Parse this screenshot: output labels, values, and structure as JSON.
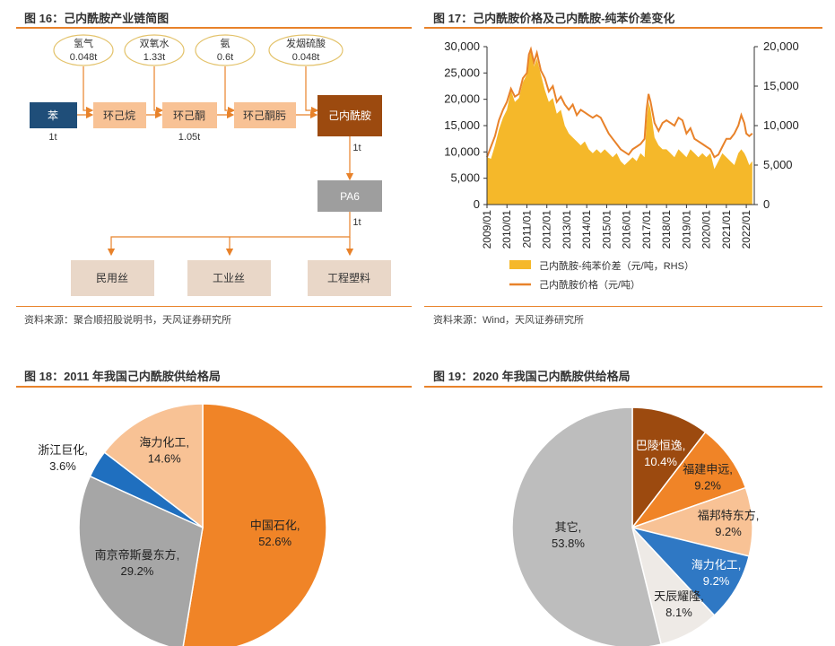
{
  "fig16": {
    "title": "图 16：己内酰胺产业链简图",
    "source": "资料来源：聚合顺招股说明书，天风证券研究所",
    "inputs": [
      {
        "name": "氢气",
        "amount": "0.048t"
      },
      {
        "name": "双氧水",
        "amount": "1.33t"
      },
      {
        "name": "氨",
        "amount": "0.6t"
      },
      {
        "name": "发烟硫酸",
        "amount": "0.048t"
      }
    ],
    "chain": [
      "苯",
      "环己烷",
      "环己酮",
      "环己酮肟",
      "己内酰胺"
    ],
    "benzene_qty": "1t",
    "cyclohexanone_qty": "1.05t",
    "caprolactam_qty": "1t",
    "pa6": "PA6",
    "pa6_qty": "1t",
    "outputs": [
      "民用丝",
      "工业丝",
      "工程塑料"
    ]
  },
  "fig17": {
    "title": "图 17：己内酰胺价格及己内酰胺-纯苯价差变化",
    "source": "资料来源：Wind，天风证券研究所",
    "legend_area": "己内酰胺-纯苯价差（元/吨，RHS）",
    "legend_line": "己内酰胺价格（元/吨）",
    "colors": {
      "area": "#f5b82a",
      "line": "#e8822a"
    },
    "chart_data": {
      "type": "line",
      "x_ticks": [
        "2009/01",
        "2010/01",
        "2011/01",
        "2012/01",
        "2013/01",
        "2014/01",
        "2015/01",
        "2016/01",
        "2017/01",
        "2018/01",
        "2019/01",
        "2020/01",
        "2021/01",
        "2022/01"
      ],
      "left_axis": {
        "min": 0,
        "max": 30000,
        "ticks": [
          "0",
          "5,000",
          "10,000",
          "15,000",
          "20,000",
          "25,000",
          "30,000"
        ]
      },
      "right_axis": {
        "min": 0,
        "max": 20000,
        "ticks": [
          "0",
          "5,000",
          "10,000",
          "15,000",
          "20,000"
        ]
      },
      "series": [
        {
          "name": "己内酰胺价格（元/吨）",
          "axis": "left",
          "points": [
            [
              2009.0,
              9000
            ],
            [
              2009.2,
              11000
            ],
            [
              2009.4,
              13000
            ],
            [
              2009.6,
              16000
            ],
            [
              2009.8,
              18000
            ],
            [
              2010.0,
              19500
            ],
            [
              2010.2,
              22000
            ],
            [
              2010.4,
              20500
            ],
            [
              2010.6,
              21000
            ],
            [
              2010.8,
              24000
            ],
            [
              2011.0,
              25000
            ],
            [
              2011.1,
              28500
            ],
            [
              2011.2,
              29500
            ],
            [
              2011.35,
              27000
            ],
            [
              2011.5,
              28800
            ],
            [
              2011.7,
              25500
            ],
            [
              2011.9,
              24000
            ],
            [
              2012.1,
              21500
            ],
            [
              2012.3,
              22500
            ],
            [
              2012.5,
              19500
            ],
            [
              2012.7,
              20500
            ],
            [
              2012.9,
              19000
            ],
            [
              2013.1,
              18000
            ],
            [
              2013.3,
              19000
            ],
            [
              2013.5,
              17000
            ],
            [
              2013.7,
              18000
            ],
            [
              2013.9,
              17500
            ],
            [
              2014.1,
              17000
            ],
            [
              2014.3,
              16500
            ],
            [
              2014.5,
              17000
            ],
            [
              2014.7,
              16500
            ],
            [
              2014.9,
              15000
            ],
            [
              2015.1,
              13500
            ],
            [
              2015.3,
              12500
            ],
            [
              2015.5,
              11500
            ],
            [
              2015.7,
              10500
            ],
            [
              2015.9,
              10000
            ],
            [
              2016.1,
              9500
            ],
            [
              2016.3,
              10500
            ],
            [
              2016.5,
              11000
            ],
            [
              2016.7,
              11500
            ],
            [
              2016.9,
              12500
            ],
            [
              2017.0,
              18000
            ],
            [
              2017.1,
              21000
            ],
            [
              2017.2,
              19500
            ],
            [
              2017.4,
              15500
            ],
            [
              2017.6,
              14000
            ],
            [
              2017.8,
              15500
            ],
            [
              2018.0,
              16000
            ],
            [
              2018.2,
              15500
            ],
            [
              2018.4,
              15000
            ],
            [
              2018.6,
              16500
            ],
            [
              2018.8,
              16000
            ],
            [
              2019.0,
              13500
            ],
            [
              2019.2,
              14500
            ],
            [
              2019.4,
              12500
            ],
            [
              2019.6,
              12000
            ],
            [
              2019.8,
              11500
            ],
            [
              2020.0,
              11000
            ],
            [
              2020.2,
              10500
            ],
            [
              2020.4,
              9000
            ],
            [
              2020.6,
              9500
            ],
            [
              2020.8,
              11000
            ],
            [
              2021.0,
              12500
            ],
            [
              2021.2,
              12500
            ],
            [
              2021.4,
              13500
            ],
            [
              2021.6,
              15000
            ],
            [
              2021.75,
              17000
            ],
            [
              2021.9,
              15500
            ],
            [
              2022.0,
              13500
            ],
            [
              2022.15,
              13000
            ],
            [
              2022.3,
              13500
            ]
          ]
        },
        {
          "name": "己内酰胺-纯苯价差（元/吨，RHS）",
          "axis": "right",
          "points": [
            [
              2009.0,
              6000
            ],
            [
              2009.2,
              5800
            ],
            [
              2009.4,
              7500
            ],
            [
              2009.6,
              9500
            ],
            [
              2009.8,
              11000
            ],
            [
              2010.0,
              12000
            ],
            [
              2010.2,
              14500
            ],
            [
              2010.4,
              13000
            ],
            [
              2010.6,
              13500
            ],
            [
              2010.8,
              15500
            ],
            [
              2011.0,
              16500
            ],
            [
              2011.1,
              18500
            ],
            [
              2011.2,
              19500
            ],
            [
              2011.35,
              17500
            ],
            [
              2011.5,
              18500
            ],
            [
              2011.7,
              16500
            ],
            [
              2011.9,
              14500
            ],
            [
              2012.1,
              13000
            ],
            [
              2012.3,
              13500
            ],
            [
              2012.5,
              11500
            ],
            [
              2012.7,
              12000
            ],
            [
              2012.9,
              10000
            ],
            [
              2013.1,
              9000
            ],
            [
              2013.3,
              8500
            ],
            [
              2013.5,
              8000
            ],
            [
              2013.7,
              7500
            ],
            [
              2013.9,
              8000
            ],
            [
              2014.1,
              7000
            ],
            [
              2014.3,
              6500
            ],
            [
              2014.5,
              7000
            ],
            [
              2014.7,
              6500
            ],
            [
              2014.9,
              7000
            ],
            [
              2015.1,
              6500
            ],
            [
              2015.3,
              6000
            ],
            [
              2015.5,
              6500
            ],
            [
              2015.7,
              5500
            ],
            [
              2015.9,
              5000
            ],
            [
              2016.1,
              5500
            ],
            [
              2016.3,
              6000
            ],
            [
              2016.5,
              5500
            ],
            [
              2016.7,
              6500
            ],
            [
              2016.9,
              6000
            ],
            [
              2017.0,
              10500
            ],
            [
              2017.1,
              13000
            ],
            [
              2017.2,
              12000
            ],
            [
              2017.4,
              8500
            ],
            [
              2017.6,
              7500
            ],
            [
              2017.8,
              7000
            ],
            [
              2018.0,
              7000
            ],
            [
              2018.2,
              6500
            ],
            [
              2018.4,
              6000
            ],
            [
              2018.6,
              7000
            ],
            [
              2018.8,
              6500
            ],
            [
              2019.0,
              6000
            ],
            [
              2019.2,
              7000
            ],
            [
              2019.4,
              6500
            ],
            [
              2019.6,
              6000
            ],
            [
              2019.8,
              6500
            ],
            [
              2020.0,
              6000
            ],
            [
              2020.2,
              6500
            ],
            [
              2020.4,
              4500
            ],
            [
              2020.6,
              5500
            ],
            [
              2020.8,
              6500
            ],
            [
              2021.0,
              6000
            ],
            [
              2021.2,
              5500
            ],
            [
              2021.4,
              5000
            ],
            [
              2021.6,
              6500
            ],
            [
              2021.75,
              7000
            ],
            [
              2021.9,
              6500
            ],
            [
              2022.0,
              6000
            ],
            [
              2022.15,
              5000
            ],
            [
              2022.3,
              5500
            ]
          ]
        }
      ]
    }
  },
  "fig18": {
    "title": "图 18：2011 年我国己内酰胺供给格局",
    "chart_data": {
      "type": "pie",
      "slices": [
        {
          "name": "中国石化,",
          "value": 52.6,
          "label": "52.6%",
          "color": "#f08427"
        },
        {
          "name": "南京帝斯曼东方,",
          "value": 29.2,
          "label": "29.2%",
          "color": "#a6a6a6"
        },
        {
          "name": "浙江巨化,",
          "value": 3.6,
          "label": "3.6%",
          "color": "#1f6fbf"
        },
        {
          "name": "海力化工,",
          "value": 14.6,
          "label": "14.6%",
          "color": "#f8c295"
        }
      ]
    }
  },
  "fig19": {
    "title": "图 19：2020 年我国己内酰胺供给格局",
    "chart_data": {
      "type": "pie",
      "slices": [
        {
          "name": "巴陵恒逸,",
          "value": 10.4,
          "label": "10.4%",
          "color": "#9c4a0f"
        },
        {
          "name": "福建申远,",
          "value": 9.2,
          "label": "9.2%",
          "color": "#f08427"
        },
        {
          "name": "福邦特东方,",
          "value": 9.2,
          "label": "9.2%",
          "color": "#f8c295"
        },
        {
          "name": "海力化工,",
          "value": 9.2,
          "label": "9.2%",
          "color": "#2f78c4"
        },
        {
          "name": "天辰耀隆,",
          "value": 8.1,
          "label": "8.1%",
          "color": "#eeeae6"
        },
        {
          "name": "其它,",
          "value": 53.8,
          "label": "53.8%",
          "color": "#bdbdbd"
        }
      ]
    }
  }
}
